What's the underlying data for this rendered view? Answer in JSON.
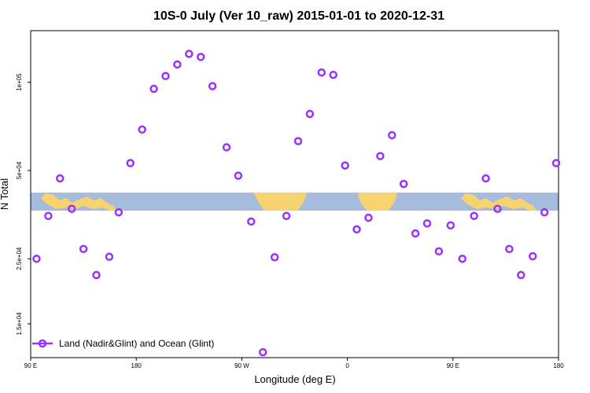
{
  "chart_data": {
    "type": "scatter",
    "title": "10S-0 July (Ver 10_raw)   2015-01-01 to 2020-12-31",
    "xlabel": "Longitude (deg E)",
    "ylabel": "N Total",
    "y_scale": "log",
    "xlim": [
      90,
      540
    ],
    "ylim": [
      11500,
      150000
    ],
    "x_ticks": [
      {
        "value": 90,
        "label": "90 E"
      },
      {
        "value": 180,
        "label": "180"
      },
      {
        "value": 270,
        "label": "90 W"
      },
      {
        "value": 360,
        "label": "0"
      },
      {
        "value": 450,
        "label": "90 E"
      },
      {
        "value": 540,
        "label": "180"
      }
    ],
    "y_ticks": [
      {
        "value": 15000,
        "label": "1.5e+04"
      },
      {
        "value": 25000,
        "label": "2.5e+04"
      },
      {
        "value": 50000,
        "label": "5e+04"
      },
      {
        "value": 100000,
        "label": "1e+05"
      }
    ],
    "legend": {
      "label": "Land (Nadir&Glint) and Ocean (Glint)",
      "position": "bottom-left",
      "color": "#9b30ff"
    },
    "series": [
      {
        "name": "Land (Nadir&Glint) and Ocean (Glint)",
        "color": "#9b30ff",
        "points": [
          {
            "x": 95,
            "y": 25000
          },
          {
            "x": 105,
            "y": 35000
          },
          {
            "x": 115,
            "y": 47000
          },
          {
            "x": 125,
            "y": 37000
          },
          {
            "x": 135,
            "y": 27000
          },
          {
            "x": 146,
            "y": 22000
          },
          {
            "x": 157,
            "y": 25400
          },
          {
            "x": 165,
            "y": 36000
          },
          {
            "x": 175,
            "y": 53000
          },
          {
            "x": 185,
            "y": 69000
          },
          {
            "x": 195,
            "y": 95000
          },
          {
            "x": 205,
            "y": 105000
          },
          {
            "x": 215,
            "y": 115000
          },
          {
            "x": 225,
            "y": 125000
          },
          {
            "x": 235,
            "y": 122000
          },
          {
            "x": 245,
            "y": 97000
          },
          {
            "x": 257,
            "y": 60000
          },
          {
            "x": 267,
            "y": 48000
          },
          {
            "x": 278,
            "y": 33500
          },
          {
            "x": 288,
            "y": 12000
          },
          {
            "x": 298,
            "y": 25300
          },
          {
            "x": 308,
            "y": 35000
          },
          {
            "x": 318,
            "y": 63000
          },
          {
            "x": 328,
            "y": 78000
          },
          {
            "x": 338,
            "y": 108000
          },
          {
            "x": 348,
            "y": 106000
          },
          {
            "x": 358,
            "y": 52000
          },
          {
            "x": 368,
            "y": 31500
          },
          {
            "x": 378,
            "y": 34500
          },
          {
            "x": 388,
            "y": 56000
          },
          {
            "x": 398,
            "y": 66000
          },
          {
            "x": 408,
            "y": 45000
          },
          {
            "x": 418,
            "y": 30500
          },
          {
            "x": 428,
            "y": 33000
          },
          {
            "x": 438,
            "y": 26500
          },
          {
            "x": 448,
            "y": 32500
          },
          {
            "x": 458,
            "y": 25000
          },
          {
            "x": 468,
            "y": 35000
          },
          {
            "x": 478,
            "y": 47000
          },
          {
            "x": 488,
            "y": 37000
          },
          {
            "x": 498,
            "y": 27000
          },
          {
            "x": 508,
            "y": 22000
          },
          {
            "x": 518,
            "y": 25500
          },
          {
            "x": 528,
            "y": 36000
          },
          {
            "x": 538,
            "y": 53000
          }
        ]
      }
    ]
  }
}
